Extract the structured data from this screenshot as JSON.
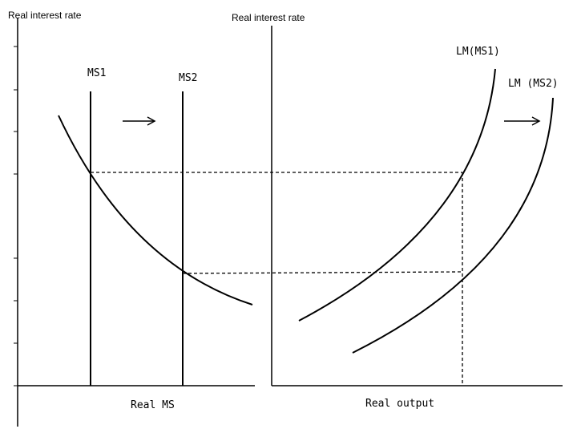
{
  "left_panel": {
    "y_axis_label": "Real interest rate",
    "x_axis_label": "Real MS",
    "ms1_label": "MS1",
    "ms2_label": "MS2"
  },
  "right_panel": {
    "y_axis_label": "Real interest rate",
    "x_axis_label": "Real output",
    "lm1_label": "LM(MS1)",
    "lm2_label": "LM (MS2)"
  }
}
